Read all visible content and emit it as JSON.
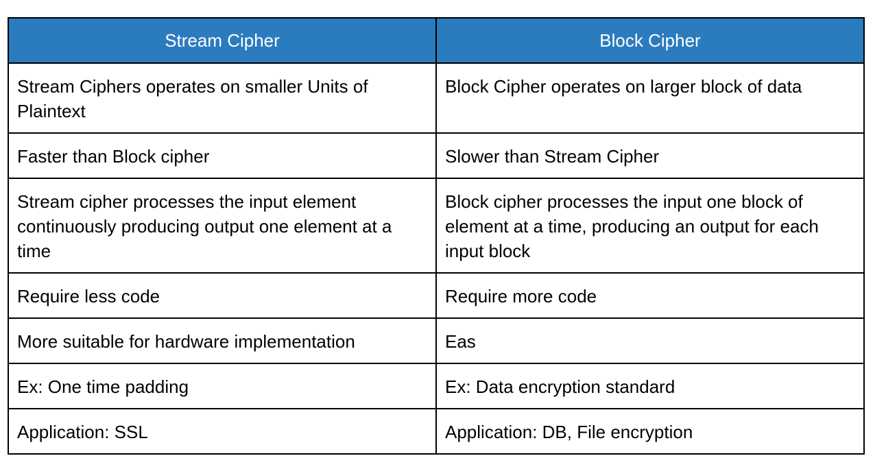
{
  "table": {
    "header": [
      "Stream Cipher",
      "Block Cipher"
    ],
    "rows": [
      [
        "Stream Ciphers operates on smaller Units of Plaintext",
        "Block Cipher operates on larger block of data"
      ],
      [
        "Faster than Block cipher",
        "Slower than Stream Cipher"
      ],
      [
        "Stream cipher processes the input element continuously producing output one element at a time",
        "Block cipher processes the input one block of element at a time, producing an output for each input block"
      ],
      [
        "Require less code",
        "Require more code"
      ],
      [
        "More suitable for hardware implementation",
        "Eas"
      ],
      [
        "Ex: One time padding",
        "Ex: Data encryption standard"
      ],
      [
        "Application: SSL",
        "Application: DB, File encryption"
      ]
    ]
  }
}
